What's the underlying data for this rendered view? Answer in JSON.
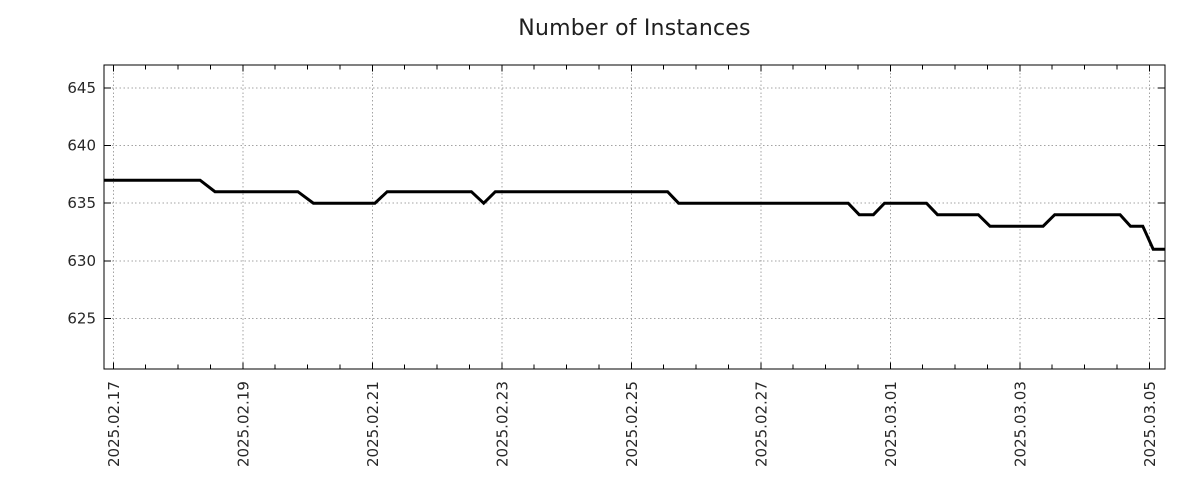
{
  "title": "Number of Instances",
  "colors": {
    "background": "#ffffff",
    "line": "#000000",
    "grid": "#a3a3a3",
    "axis": "#000000",
    "text": "#262626"
  },
  "chart_data": {
    "type": "line",
    "title": "Number of Instances",
    "xlabel": "",
    "ylabel": "",
    "legend": "none",
    "grid": "dotted",
    "x_unit": "days after 2025.02.17",
    "xlim": [
      -0.144,
      16.243
    ],
    "ylim": [
      620.6,
      647.0
    ],
    "y_ticks": [
      625,
      630,
      635,
      640,
      645
    ],
    "x_tick_days": [
      0,
      2,
      4,
      6,
      8,
      10,
      12,
      14,
      16
    ],
    "x_tick_labels": [
      "2025.02.17",
      "2025.02.19",
      "2025.02.21",
      "2025.02.23",
      "2025.02.25",
      "2025.02.27",
      "2025.03.01",
      "2025.03.03",
      "2025.03.05"
    ],
    "x_minor_tick_step_days": 0.5,
    "series": [
      {
        "name": "number-of-instances",
        "color": "#000000",
        "stroke_width": 3,
        "points": [
          [
            -0.144,
            637
          ],
          [
            1.34,
            637
          ],
          [
            1.57,
            636
          ],
          [
            2.85,
            636
          ],
          [
            3.09,
            635
          ],
          [
            4.04,
            635
          ],
          [
            4.23,
            636
          ],
          [
            5.53,
            636
          ],
          [
            5.72,
            635
          ],
          [
            5.9,
            636
          ],
          [
            8.56,
            636
          ],
          [
            8.73,
            635
          ],
          [
            11.35,
            635
          ],
          [
            11.52,
            634
          ],
          [
            11.74,
            634
          ],
          [
            11.91,
            635
          ],
          [
            12.56,
            635
          ],
          [
            12.73,
            634
          ],
          [
            13.36,
            634
          ],
          [
            13.54,
            633
          ],
          [
            14.36,
            633
          ],
          [
            14.54,
            634
          ],
          [
            15.55,
            634
          ],
          [
            15.71,
            633
          ],
          [
            15.9,
            633
          ],
          [
            16.06,
            631
          ],
          [
            16.243,
            631
          ]
        ]
      }
    ]
  }
}
